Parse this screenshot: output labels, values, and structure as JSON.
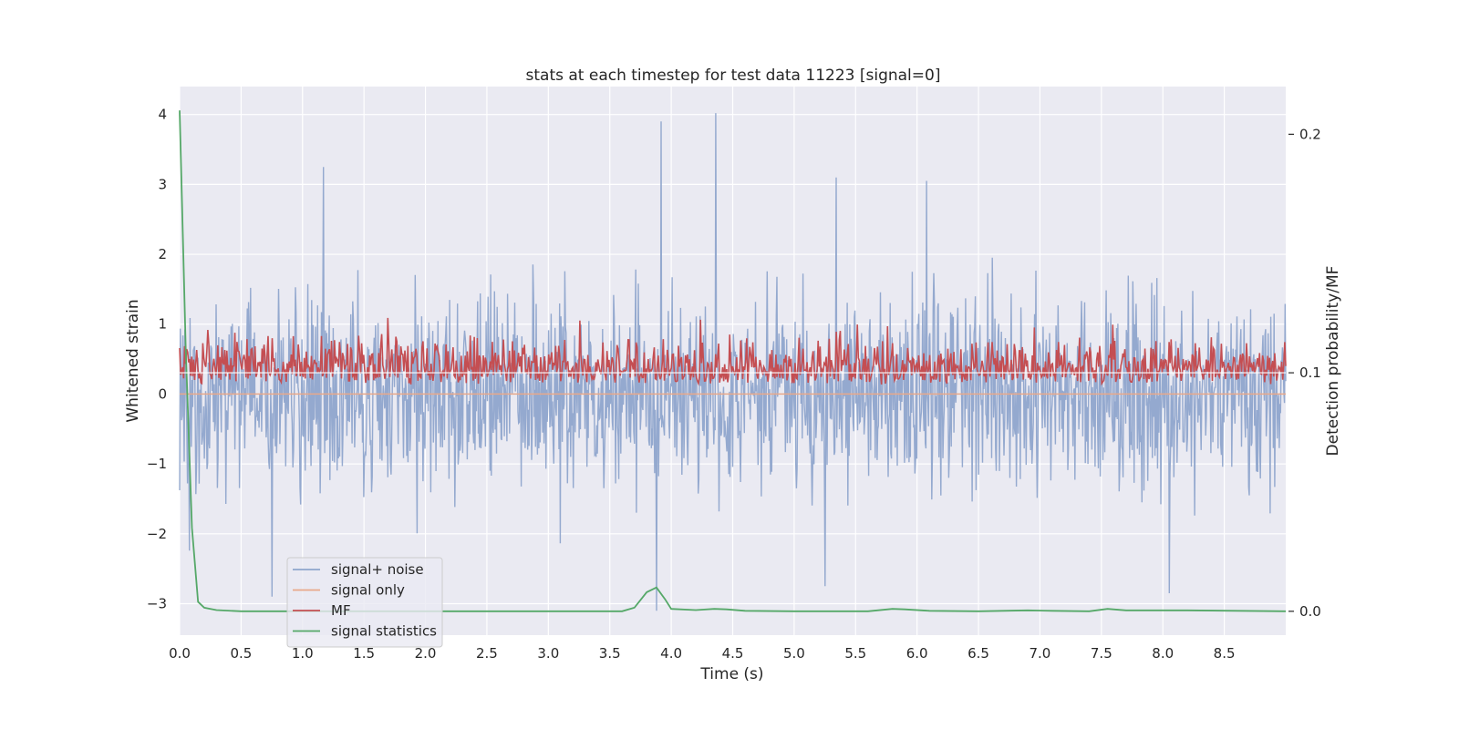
{
  "chart_data": {
    "type": "line",
    "title": "stats at each timestep for test data 11223 [signal=0]",
    "xlabel": "Time (s)",
    "ylabel": "Whitened strain",
    "ylabel_right": "Detection probability/MF",
    "xlim": [
      0.0,
      9.0
    ],
    "ylim": [
      -3.45,
      4.4
    ],
    "ylim_right": [
      -0.01,
      0.22
    ],
    "x_ticks": [
      0.0,
      0.5,
      1.0,
      1.5,
      2.0,
      2.5,
      3.0,
      3.5,
      4.0,
      4.5,
      5.0,
      5.5,
      6.0,
      6.5,
      7.0,
      7.5,
      8.0,
      8.5
    ],
    "x_tick_labels": [
      "0.0",
      "0.5",
      "1.0",
      "1.5",
      "2.0",
      "2.5",
      "3.0",
      "3.5",
      "4.0",
      "4.5",
      "5.0",
      "5.5",
      "6.0",
      "6.5",
      "7.0",
      "7.5",
      "8.0",
      "8.5"
    ],
    "y_ticks": [
      -3,
      -2,
      -1,
      0,
      1,
      2,
      3,
      4
    ],
    "y_tick_labels": [
      "−3",
      "−2",
      "−1",
      "0",
      "1",
      "2",
      "3",
      "4"
    ],
    "y_ticks_right": [
      0.0,
      0.1,
      0.2
    ],
    "y_tick_labels_right": [
      "0.0",
      "0.1",
      "0.2"
    ],
    "grid": true,
    "legend_position": "lower-left",
    "background": "#eaeaf2",
    "series": [
      {
        "name": "signal+ noise",
        "axis": "left",
        "color": "#8fa5cc",
        "render": "noise",
        "approx_range": [
          -3.1,
          4.0
        ],
        "notable_peaks": [
          [
            1.17,
            3.25
          ],
          [
            3.92,
            3.9
          ],
          [
            4.36,
            4.02
          ],
          [
            5.34,
            3.1
          ],
          [
            6.08,
            3.05
          ]
        ],
        "notable_troughs": [
          [
            0.75,
            -2.9
          ],
          [
            3.88,
            -3.1
          ],
          [
            5.25,
            -2.75
          ],
          [
            8.05,
            -2.85
          ]
        ]
      },
      {
        "name": "signal only",
        "axis": "left",
        "color": "#e8a88a",
        "x": [
          0.0,
          9.0
        ],
        "values": [
          0.0,
          0.0
        ]
      },
      {
        "name": "MF",
        "axis": "right",
        "color": "#c44e52",
        "render": "noise",
        "approx_range": [
          0.095,
          0.123
        ]
      },
      {
        "name": "signal statistics",
        "axis": "right",
        "color": "#55a868",
        "x": [
          0.0,
          0.05,
          0.1,
          0.15,
          0.2,
          0.3,
          0.5,
          1.0,
          2.0,
          3.0,
          3.6,
          3.7,
          3.8,
          3.88,
          3.95,
          4.0,
          4.2,
          4.35,
          4.45,
          4.6,
          5.0,
          5.6,
          5.8,
          5.9,
          6.1,
          6.5,
          6.9,
          7.1,
          7.4,
          7.55,
          7.7,
          8.2,
          9.0
        ],
        "values": [
          0.21,
          0.11,
          0.035,
          0.004,
          0.0015,
          0.0005,
          0.0,
          0.0,
          0.0,
          0.0,
          0.0,
          0.0015,
          0.008,
          0.01,
          0.005,
          0.001,
          0.0005,
          0.001,
          0.0008,
          0.0002,
          0.0,
          0.0,
          0.001,
          0.0008,
          0.0002,
          0.0,
          0.0004,
          0.0002,
          0.0,
          0.001,
          0.0004,
          0.0004,
          0.0
        ]
      }
    ]
  }
}
